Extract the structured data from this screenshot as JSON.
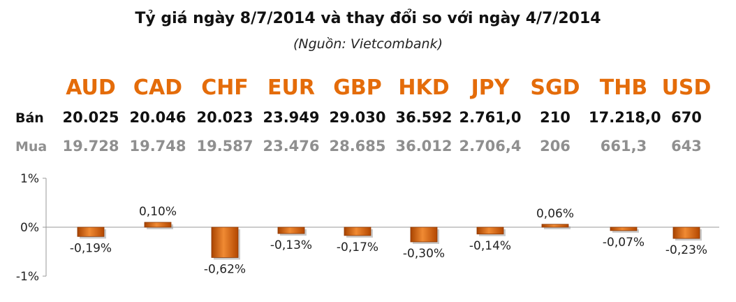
{
  "header": {
    "title": "Tỷ giá ngày 8/7/2014 và thay đổi so với ngày 4/7/2014",
    "subtitle": "(Nguồn: Vietcombank)"
  },
  "rows": {
    "sell_label": "Bán",
    "buy_label": "Mua"
  },
  "currencies": [
    {
      "code": "AUD",
      "sell": "20.025",
      "buy": "19.728"
    },
    {
      "code": "CAD",
      "sell": "20.046",
      "buy": "19.748"
    },
    {
      "code": "CHF",
      "sell": "20.023",
      "buy": "19.587"
    },
    {
      "code": "EUR",
      "sell": "23.949",
      "buy": "23.476"
    },
    {
      "code": "GBP",
      "sell": "29.030",
      "buy": "28.685"
    },
    {
      "code": "HKD",
      "sell": "36.592",
      "buy": "36.012"
    },
    {
      "code": "JPY",
      "sell": "2.761,0",
      "buy": "2.706,4"
    },
    {
      "code": "SGD",
      "sell": "210",
      "buy": "206"
    },
    {
      "code": "THB",
      "sell": "17.218,0",
      "buy": "661,3"
    },
    {
      "code": "USD",
      "sell": "670",
      "buy": "643"
    }
  ],
  "colors": {
    "accent": "#e46c0a",
    "bar_dark": "#b34700",
    "bar_light": "#f39a4a",
    "muted_text": "#8f8f8f"
  },
  "chart_data": {
    "type": "bar",
    "categories": [
      "AUD",
      "CAD",
      "CHF",
      "EUR",
      "GBP",
      "HKD",
      "JPY",
      "SGD",
      "THB",
      "USD"
    ],
    "values": [
      -0.19,
      0.1,
      -0.62,
      -0.13,
      -0.17,
      -0.3,
      -0.14,
      0.06,
      -0.07,
      -0.23
    ],
    "data_labels": [
      "-0,19%",
      "0,10%",
      "-0,62%",
      "-0,13%",
      "-0,17%",
      "-0,30%",
      "-0,14%",
      "0,06%",
      "-0,07%",
      "-0,23%"
    ],
    "ylim": [
      -1,
      1
    ],
    "yticks": [
      {
        "value": 1,
        "label": "1%"
      },
      {
        "value": 0,
        "label": "0%"
      },
      {
        "value": -1,
        "label": "-1%"
      }
    ],
    "grid": false,
    "legend": "none"
  }
}
